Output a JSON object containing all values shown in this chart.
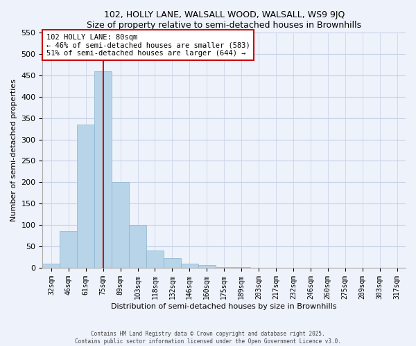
{
  "title": "102, HOLLY LANE, WALSALL WOOD, WALSALL, WS9 9JQ",
  "subtitle": "Size of property relative to semi-detached houses in Brownhills",
  "xlabel": "Distribution of semi-detached houses by size in Brownhills",
  "ylabel": "Number of semi-detached properties",
  "bar_labels": [
    "32sqm",
    "46sqm",
    "61sqm",
    "75sqm",
    "89sqm",
    "103sqm",
    "118sqm",
    "132sqm",
    "146sqm",
    "160sqm",
    "175sqm",
    "189sqm",
    "203sqm",
    "217sqm",
    "232sqm",
    "246sqm",
    "260sqm",
    "275sqm",
    "289sqm",
    "303sqm",
    "317sqm"
  ],
  "bar_values": [
    10,
    85,
    335,
    460,
    200,
    100,
    40,
    22,
    10,
    7,
    2,
    2,
    0,
    0,
    0,
    0,
    0,
    0,
    0,
    0,
    0
  ],
  "bar_color": "#b8d4e8",
  "bar_edge_color": "#8ab4cc",
  "vline_x": 3,
  "annotation_line1": "102 HOLLY LANE: 80sqm",
  "annotation_line2": "← 46% of semi-detached houses are smaller (583)",
  "annotation_line3": "51% of semi-detached houses are larger (644) →",
  "ylim": [
    0,
    550
  ],
  "yticks": [
    0,
    50,
    100,
    150,
    200,
    250,
    300,
    350,
    400,
    450,
    500,
    550
  ],
  "vline_color": "#cc0000",
  "footer1": "Contains HM Land Registry data © Crown copyright and database right 2025.",
  "footer2": "Contains public sector information licensed under the Open Government Licence v3.0.",
  "bg_color": "#eef2fa",
  "grid_color": "#c5d0e8"
}
